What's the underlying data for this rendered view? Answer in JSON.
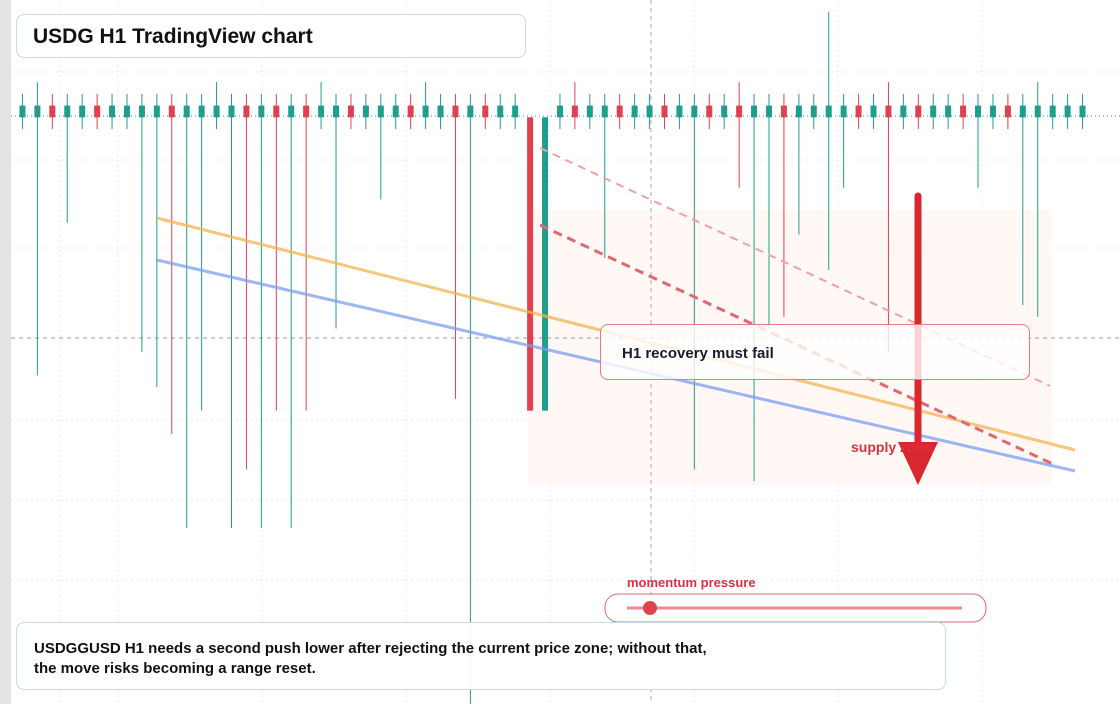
{
  "chart_data": {
    "type": "candlestick",
    "title": "USDG H1 TradingView chart",
    "annotations": {
      "zone_label": "H1 recovery must fail",
      "supply_label": "supply zone",
      "momentum_label": "momentum pressure",
      "note": "USDGGUSD H1 needs a second push lower after rejecting the current price zone; without that, the move risks becoming a range reset."
    },
    "up_color": "#1f9e8c",
    "down_color": "#e0414f",
    "ylim": [
      0.995,
      1.001
    ],
    "open": [
      1.0,
      1.0,
      1.0001,
      1.0,
      1.0,
      1.0001,
      1.0,
      1.0,
      1.0,
      1.0,
      1.0001,
      1.0,
      1.0,
      1.0,
      1.0,
      1.0001,
      1.0,
      1.0001,
      1.0,
      1.0001,
      1.0,
      1.0,
      1.0001,
      1.0,
      1.0,
      1.0,
      1.0001,
      1.0,
      1.0,
      1.0001,
      1.0,
      1.0001,
      1.0,
      1.0,
      1.0,
      0.9975,
      1.0,
      1.0001,
      1.0,
      1.0,
      1.0001,
      1.0,
      1.0,
      1.0001,
      1.0,
      1.0,
      1.0001,
      1.0,
      1.0001,
      1.0,
      1.0,
      1.0001,
      1.0,
      1.0,
      1.0,
      1.0,
      1.0001,
      1.0,
      1.0001,
      1.0,
      1.0001,
      1.0,
      1.0,
      1.0001,
      1.0,
      1.0,
      1.0001,
      1.0,
      1.0,
      1.0,
      1.0,
      1.0
    ],
    "high": [
      1.0002,
      1.0003,
      1.0002,
      1.0002,
      1.0002,
      1.0002,
      1.0002,
      1.0002,
      1.0002,
      1.0002,
      1.0002,
      1.0002,
      1.0002,
      1.0003,
      1.0002,
      1.0002,
      1.0002,
      1.0002,
      1.0002,
      1.0002,
      1.0003,
      1.0002,
      1.0002,
      1.0002,
      1.0002,
      1.0002,
      1.0002,
      1.0003,
      1.0002,
      1.0002,
      1.0002,
      1.0002,
      1.0002,
      1.0002,
      1.0,
      1.0,
      1.0002,
      1.0003,
      1.0002,
      1.0002,
      1.0002,
      1.0002,
      1.0002,
      1.0002,
      1.0002,
      1.0002,
      1.0002,
      1.0002,
      1.0003,
      1.0002,
      1.0002,
      1.0002,
      1.0002,
      1.0002,
      1.0009,
      1.0002,
      1.0002,
      1.0002,
      1.0003,
      1.0002,
      1.0002,
      1.0002,
      1.0002,
      1.0002,
      1.0002,
      1.0002,
      1.0002,
      1.0002,
      1.0003,
      1.0002,
      1.0002,
      1.0002
    ],
    "low": [
      0.9999,
      0.9978,
      0.9999,
      0.9991,
      0.9999,
      0.9999,
      0.9999,
      0.9999,
      0.998,
      0.9977,
      0.9973,
      0.9965,
      0.9975,
      0.9999,
      0.9965,
      0.997,
      0.9965,
      0.9975,
      0.9965,
      0.9975,
      0.9999,
      0.9982,
      0.9999,
      0.9999,
      0.9993,
      0.9999,
      0.9999,
      0.9999,
      0.9999,
      0.9976,
      0.995,
      0.9999,
      0.9999,
      0.9999,
      0.9975,
      0.9975,
      0.9999,
      0.9999,
      0.9999,
      0.9988,
      0.9999,
      0.9999,
      0.9999,
      0.9999,
      0.9999,
      0.997,
      0.9999,
      0.9999,
      0.9994,
      0.9969,
      0.9982,
      0.9983,
      0.999,
      0.9999,
      0.9987,
      0.9994,
      0.9999,
      0.9999,
      0.998,
      0.9999,
      0.9999,
      0.9999,
      0.9999,
      0.9999,
      0.9994,
      0.9999,
      0.9999,
      0.9984,
      0.9983,
      0.9999,
      0.9999,
      0.9999
    ],
    "close": [
      1.0001,
      1.0001,
      1.0,
      1.0001,
      1.0001,
      1.0,
      1.0001,
      1.0001,
      1.0001,
      1.0001,
      1.0,
      1.0001,
      1.0001,
      1.0001,
      1.0001,
      1.0,
      1.0001,
      1.0,
      1.0001,
      1.0,
      1.0001,
      1.0001,
      1.0,
      1.0001,
      1.0001,
      1.0001,
      1.0,
      1.0001,
      1.0001,
      1.0,
      1.0001,
      1.0,
      1.0001,
      1.0001,
      0.9975,
      1.0,
      1.0001,
      1.0,
      1.0001,
      1.0001,
      1.0,
      1.0001,
      1.0001,
      1.0,
      1.0001,
      1.0001,
      1.0,
      1.0001,
      1.0,
      1.0001,
      1.0001,
      1.0,
      1.0001,
      1.0001,
      1.0001,
      1.0001,
      1.0,
      1.0001,
      1.0,
      1.0001,
      1.0,
      1.0001,
      1.0001,
      1.0,
      1.0001,
      1.0001,
      1.0,
      1.0001,
      1.0001,
      1.0001,
      1.0001,
      1.0001
    ]
  }
}
